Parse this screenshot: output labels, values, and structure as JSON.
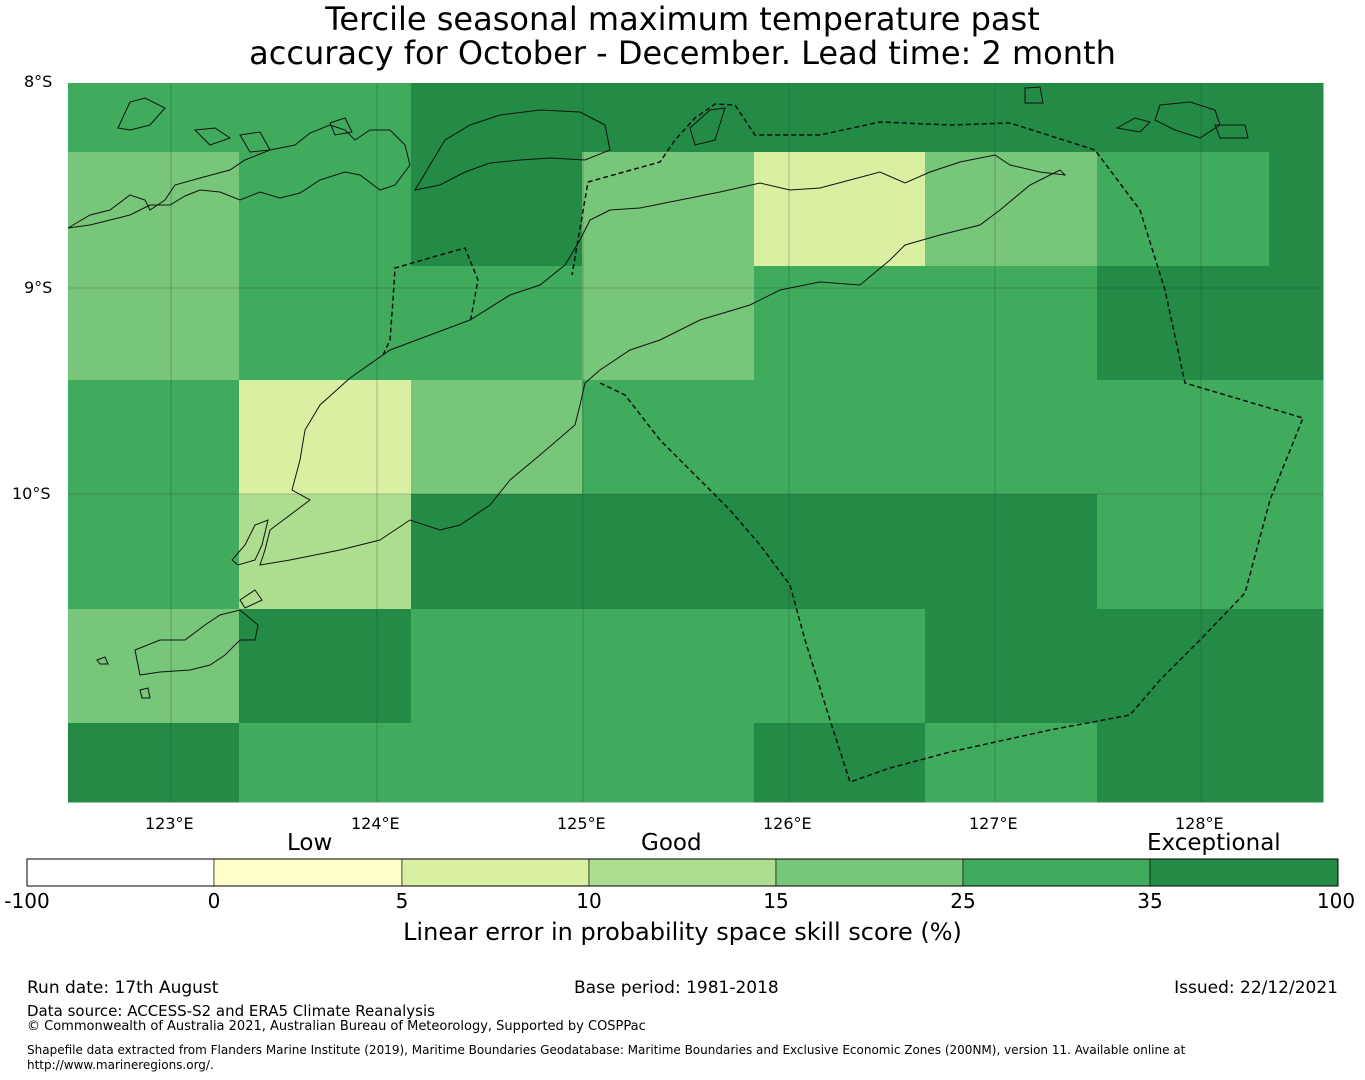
{
  "title": {
    "line1": "Tercile seasonal maximum temperature past",
    "line2": "accuracy for October - December. Lead time: 2 month"
  },
  "map": {
    "lat_labels": [
      "8°S",
      "9°S",
      "10°S"
    ],
    "lon_labels": [
      "123°E",
      "124°E",
      "125°E",
      "126°E",
      "127°E",
      "128°E"
    ],
    "grid_colors": [
      [
        "#41ab5d",
        "#41ab5d",
        "#238b45",
        "#238b45",
        "#238b45",
        "#238b45",
        "#238b45",
        "#238b45"
      ],
      [
        "#78c679",
        "#41ab5d",
        "#238b45",
        "#78c679",
        "#d9f0a3",
        "#78c679",
        "#41ab5d",
        "#238b45"
      ],
      [
        "#78c679",
        "#41ab5d",
        "#41ab5d",
        "#78c679",
        "#41ab5d",
        "#41ab5d",
        "#238b45",
        "#238b45"
      ],
      [
        "#41ab5d",
        "#d9f0a3",
        "#78c679",
        "#41ab5d",
        "#41ab5d",
        "#41ab5d",
        "#41ab5d",
        "#41ab5d"
      ],
      [
        "#41ab5d",
        "#addd8e",
        "#238b45",
        "#238b45",
        "#238b45",
        "#238b45",
        "#41ab5d",
        "#41ab5d"
      ],
      [
        "#78c679",
        "#238b45",
        "#41ab5d",
        "#41ab5d",
        "#41ab5d",
        "#238b45",
        "#238b45",
        "#238b45"
      ],
      [
        "#238b45",
        "#41ab5d",
        "#41ab5d",
        "#41ab5d",
        "#238b45",
        "#41ab5d",
        "#238b45",
        "#238b45"
      ]
    ]
  },
  "colorbar": {
    "words": {
      "low": "Low",
      "good": "Good",
      "exceptional": "Exceptional"
    },
    "ticks": [
      "-100",
      "0",
      "5",
      "10",
      "15",
      "25",
      "35",
      "100"
    ],
    "colors": [
      "#ffffff",
      "#ffffcc",
      "#d9f0a3",
      "#addd8e",
      "#78c679",
      "#41ab5d",
      "#238b45"
    ],
    "label": "Linear error in probability space skill score (%)"
  },
  "footer": {
    "run_date": "Run date: 17th August",
    "base_period": "Base period: 1981-2018",
    "issued": "Issued: 22/12/2021",
    "data_source": "Data source: ACCESS-S2 and ERA5 Climate Reanalysis",
    "copyright": "© Commonwealth of Australia 2021, Australian Bureau of Meteorology, Supported by COSPPac",
    "shapefile_line1": "Shapefile data extracted from Flanders Marine Institute (2019), Maritime Boundaries Geodatabase: Maritime Boundaries and Exclusive Economic Zones (200NM), version 11. Available online at",
    "shapefile_line2": "http://www.marineregions.org/."
  }
}
